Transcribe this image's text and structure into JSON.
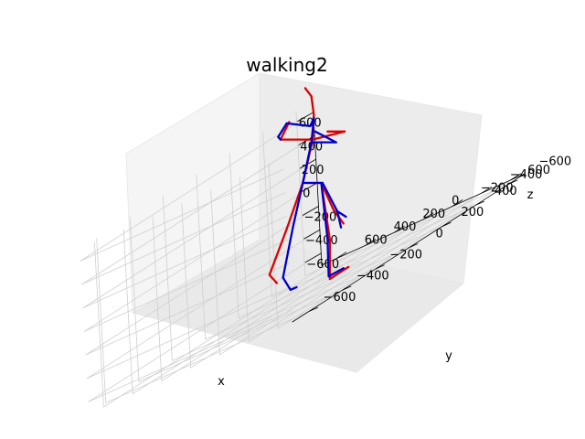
{
  "chart_data": {
    "type": "line",
    "projection": "3d",
    "title": "walking2",
    "xlabel": "x",
    "ylabel": "y",
    "zlabel": "z",
    "xlim": [
      -700,
      700
    ],
    "ylim": [
      -700,
      700
    ],
    "zlim": [
      -700,
      700
    ],
    "xticks": [
      -600,
      -400,
      -200,
      0,
      200,
      400,
      600
    ],
    "yticks": [
      -600,
      -400,
      -200,
      0,
      200,
      400,
      600
    ],
    "zticks": [
      -600,
      -400,
      -200,
      0,
      200,
      400,
      600
    ],
    "xtick_labels": [
      "−600",
      "−400",
      "−200",
      "0",
      "200",
      "400",
      "600"
    ],
    "ytick_labels": [
      "−600",
      "−400",
      "−200",
      "0",
      "200",
      "400",
      "600"
    ],
    "ztick_labels": [
      "−600",
      "−400",
      "−200",
      "0",
      "200",
      "400",
      "600"
    ],
    "grid": true,
    "series": [
      {
        "color": "#dd0000",
        "segments": [
          [
            [
              -50,
              0,
              0
            ],
            [
              -180,
              0,
              -340
            ]
          ],
          [
            [
              -180,
              0,
              -340
            ],
            [
              -320,
              0,
              -680
            ]
          ],
          [
            [
              -320,
              0,
              -680
            ],
            [
              -260,
              0,
              -740
            ]
          ],
          [
            [
              100,
              0,
              0
            ],
            [
              170,
              0,
              -420
            ]
          ],
          [
            [
              170,
              0,
              -420
            ],
            [
              170,
              0,
              -710
            ]
          ],
          [
            [
              170,
              0,
              -710
            ],
            [
              320,
              0,
              -620
            ]
          ],
          [
            [
              -50,
              0,
              0
            ],
            [
              30,
              0,
              320
            ]
          ],
          [
            [
              30,
              0,
              320
            ],
            [
              40,
              0,
              500
            ]
          ],
          [
            [
              40,
              0,
              500
            ],
            [
              20,
              0,
              640
            ]
          ],
          [
            [
              20,
              0,
              640
            ],
            [
              -30,
              0,
              700
            ]
          ],
          [
            [
              30,
              0,
              320
            ],
            [
              -230,
              0,
              320
            ]
          ],
          [
            [
              -230,
              0,
              320
            ],
            [
              -160,
              0,
              450
            ]
          ],
          [
            [
              30,
              0,
              320
            ],
            [
              290,
              0,
              380
            ]
          ],
          [
            [
              290,
              0,
              380
            ],
            [
              150,
              0,
              380
            ]
          ],
          [
            [
              -50,
              0,
              0
            ],
            [
              100,
              0,
              0
            ]
          ],
          [
            [
              100,
              0,
              0
            ],
            [
              200,
              0,
              -200
            ]
          ],
          [
            [
              200,
              0,
              -200
            ],
            [
              280,
              0,
              -300
            ]
          ]
        ]
      },
      {
        "color": "#0000cc",
        "segments": [
          [
            [
              -50,
              0,
              0
            ],
            [
              -130,
              0,
              -330
            ]
          ],
          [
            [
              -130,
              0,
              -330
            ],
            [
              -210,
              0,
              -700
            ]
          ],
          [
            [
              -210,
              0,
              -700
            ],
            [
              -150,
              0,
              -790
            ]
          ],
          [
            [
              -150,
              0,
              -790
            ],
            [
              -100,
              0,
              -770
            ]
          ],
          [
            [
              100,
              0,
              0
            ],
            [
              150,
              0,
              -410
            ]
          ],
          [
            [
              150,
              0,
              -410
            ],
            [
              160,
              0,
              -690
            ]
          ],
          [
            [
              160,
              0,
              -690
            ],
            [
              280,
              0,
              -630
            ]
          ],
          [
            [
              -50,
              0,
              0
            ],
            [
              20,
              0,
              300
            ]
          ],
          [
            [
              20,
              0,
              300
            ],
            [
              40,
              0,
              480
            ]
          ],
          [
            [
              40,
              0,
              480
            ],
            [
              10,
              0,
              420
            ]
          ],
          [
            [
              10,
              0,
              420
            ],
            [
              -180,
              0,
              440
            ]
          ],
          [
            [
              -180,
              0,
              440
            ],
            [
              -250,
              0,
              340
            ]
          ],
          [
            [
              -250,
              0,
              340
            ],
            [
              -230,
              0,
              320
            ]
          ],
          [
            [
              20,
              0,
              300
            ],
            [
              220,
              0,
              300
            ]
          ],
          [
            [
              220,
              0,
              300
            ],
            [
              50,
              0,
              380
            ]
          ],
          [
            [
              -50,
              0,
              0
            ],
            [
              110,
              0,
              0
            ]
          ],
          [
            [
              110,
              0,
              0
            ],
            [
              230,
              0,
              -210
            ]
          ],
          [
            [
              230,
              0,
              -210
            ],
            [
              300,
              0,
              -250
            ]
          ],
          [
            [
              230,
              0,
              -210
            ],
            [
              260,
              0,
              -330
            ]
          ]
        ]
      }
    ]
  }
}
